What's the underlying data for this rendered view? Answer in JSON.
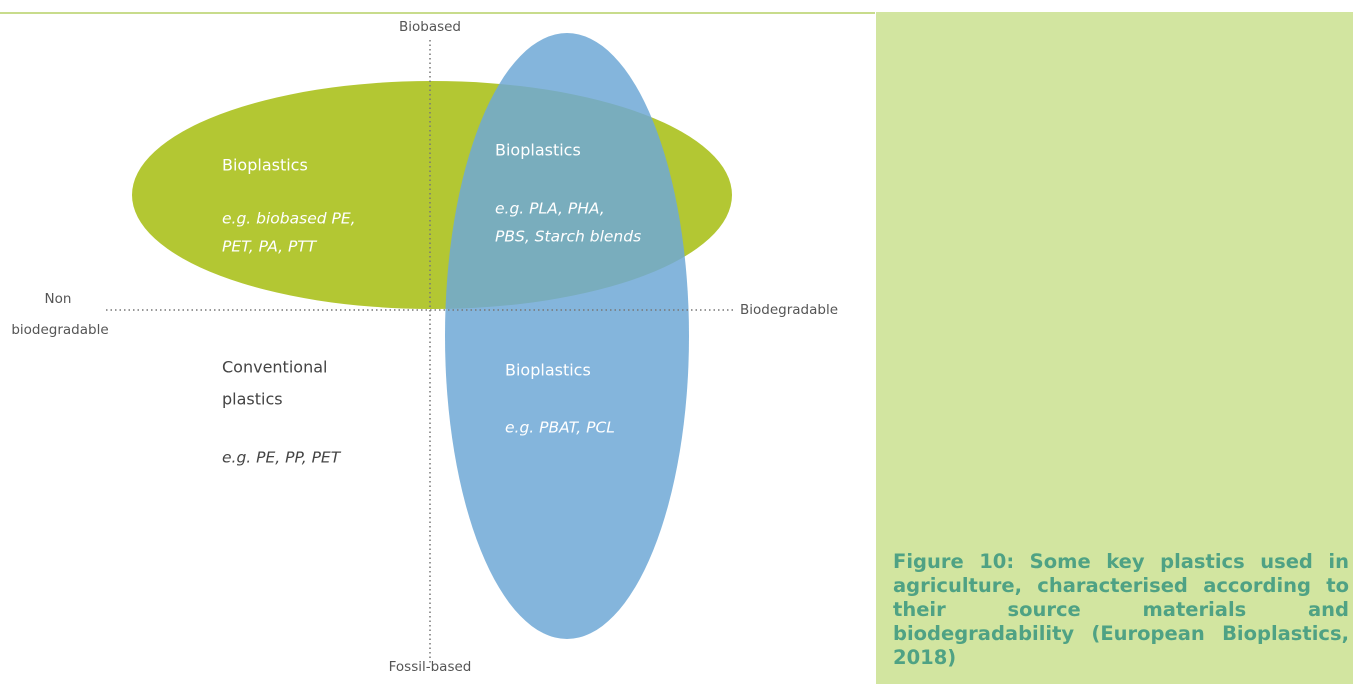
{
  "axes": {
    "top": "Biobased",
    "bottom": "Fossil-based",
    "left": [
      "Non",
      "biodegradable"
    ],
    "right": "Biodegradable"
  },
  "regions": [
    {
      "title": "Bioplastics",
      "examples": [
        "e.g. biobased PE,",
        "PET, PA, PTT"
      ]
    },
    {
      "title": "Bioplastics",
      "examples": [
        "e.g. PLA, PHA,",
        "PBS, Starch blends"
      ]
    },
    {
      "title": "Bioplastics",
      "examples": [
        "e.g. PBAT, PCL"
      ]
    },
    {
      "title": [
        "Conventional",
        "plastics"
      ],
      "examples": [
        "e.g. PE, PP, PET"
      ]
    }
  ],
  "caption": "Figure 10: Some key plastics used in agriculture, characterised according to their source materials and biodegradability (European Bioplastics, 2018)"
}
